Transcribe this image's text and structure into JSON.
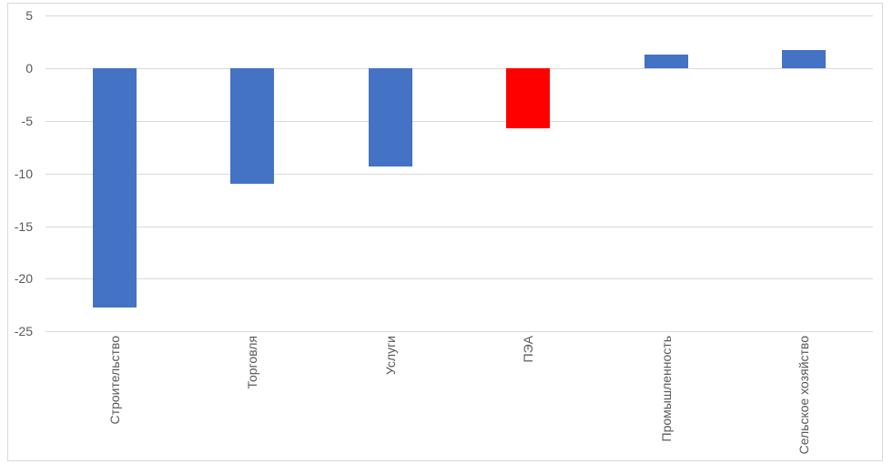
{
  "chart_data": {
    "type": "bar",
    "title": "",
    "xlabel": "",
    "ylabel": "",
    "categories": [
      "Строительство",
      "Торговля",
      "Услуги",
      "ПЭА",
      "Промышленность",
      "Сельское хозяйство"
    ],
    "values": [
      -22.7,
      -11.0,
      -9.3,
      -5.7,
      1.3,
      1.7
    ],
    "bar_colors": [
      "#4472C4",
      "#4472C4",
      "#4472C4",
      "#FF0000",
      "#4472C4",
      "#4472C4"
    ],
    "ylim": [
      -25,
      5
    ],
    "yticks": [
      5,
      0,
      -5,
      -10,
      -15,
      -20,
      -25
    ],
    "ytick_labels": [
      "5",
      "0",
      "-5",
      "-10",
      "-15",
      "-20",
      "-25"
    ],
    "grid": true,
    "legend": "none",
    "colors": {
      "series_default": "#4472C4",
      "highlight": "#FF0000",
      "gridline": "#D9D9D9",
      "tick_text": "#595959",
      "frame_border": "#D9D9D9",
      "background": "#FFFFFF"
    }
  }
}
